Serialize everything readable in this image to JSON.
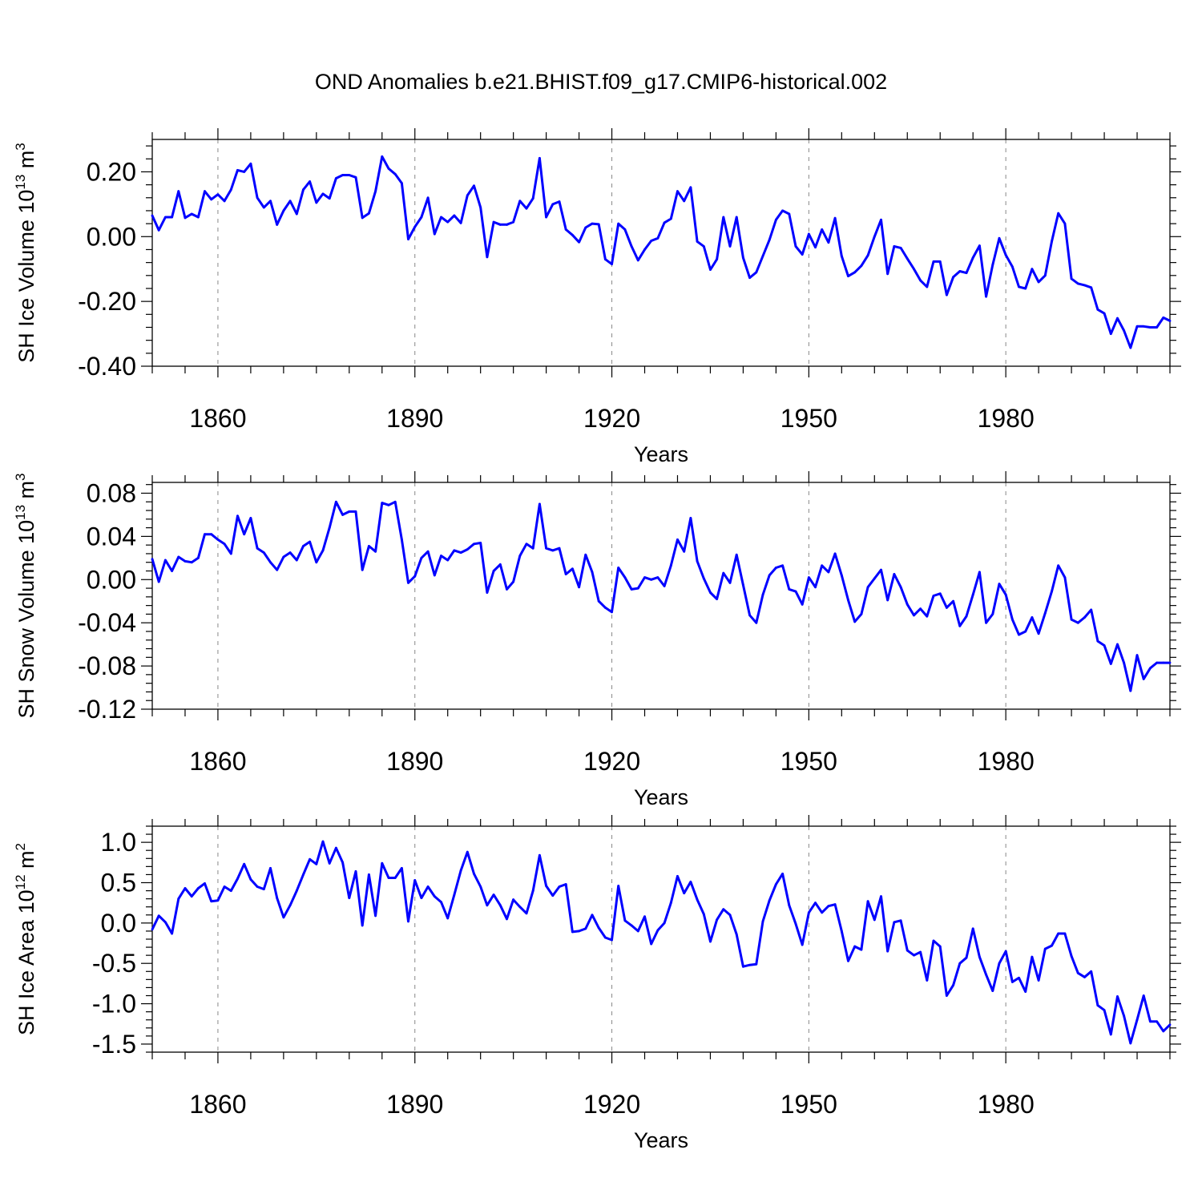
{
  "title": "OND Anomalies b.e21.BHIST.f09_g17.CMIP6-historical.002",
  "colors": {
    "line": "#0000ff",
    "axis": "#000000",
    "grid": "#888888"
  },
  "chart_data": [
    {
      "type": "line",
      "ylabel": {
        "text": "SH Ice Volume 10",
        "exp": "13",
        "unit": " m",
        "unit_exp": "3"
      },
      "xlabel": "Years",
      "xlim": [
        1850,
        2005
      ],
      "ylim": [
        -0.4,
        0.3
      ],
      "yticks": [
        -0.4,
        -0.2,
        0.0,
        0.2
      ],
      "ytick_labels": [
        "-0.40",
        "-0.20",
        "0.00",
        "0.20"
      ],
      "xticks": [
        1860,
        1890,
        1920,
        1950,
        1980
      ],
      "xtick_labels": [
        "1860",
        "1890",
        "1920",
        "1950",
        "1980"
      ],
      "grid": "vertical dashed at major x ticks",
      "x_start": 1850,
      "values": [
        0.065,
        0.02,
        0.06,
        0.06,
        0.14,
        0.058,
        0.07,
        0.06,
        0.14,
        0.115,
        0.13,
        0.11,
        0.145,
        0.205,
        0.2,
        0.225,
        0.12,
        0.09,
        0.11,
        0.037,
        0.08,
        0.11,
        0.07,
        0.145,
        0.17,
        0.105,
        0.132,
        0.118,
        0.18,
        0.19,
        0.19,
        0.183,
        0.058,
        0.072,
        0.14,
        0.247,
        0.21,
        0.193,
        0.165,
        -0.008,
        0.03,
        0.06,
        0.12,
        0.008,
        0.06,
        0.045,
        0.065,
        0.042,
        0.127,
        0.157,
        0.09,
        -0.063,
        0.045,
        0.037,
        0.037,
        0.045,
        0.11,
        0.087,
        0.118,
        0.242,
        0.06,
        0.1,
        0.108,
        0.022,
        0.005,
        -0.017,
        0.028,
        0.04,
        0.038,
        -0.07,
        -0.085,
        0.04,
        0.022,
        -0.03,
        -0.073,
        -0.04,
        -0.013,
        -0.005,
        0.043,
        0.055,
        0.14,
        0.11,
        0.152,
        -0.015,
        -0.03,
        -0.102,
        -0.07,
        0.06,
        -0.03,
        0.06,
        -0.065,
        -0.127,
        -0.11,
        -0.06,
        -0.01,
        0.052,
        0.08,
        0.07,
        -0.03,
        -0.055,
        0.008,
        -0.033,
        0.022,
        -0.018,
        0.057,
        -0.06,
        -0.122,
        -0.11,
        -0.09,
        -0.058,
        0.0,
        0.052,
        -0.115,
        -0.03,
        -0.035,
        -0.068,
        -0.1,
        -0.135,
        -0.155,
        -0.077,
        -0.077,
        -0.18,
        -0.125,
        -0.107,
        -0.112,
        -0.065,
        -0.028,
        -0.185,
        -0.087,
        -0.005,
        -0.057,
        -0.093,
        -0.155,
        -0.16,
        -0.1,
        -0.14,
        -0.12,
        -0.015,
        0.072,
        0.04,
        -0.13,
        -0.145,
        -0.15,
        -0.157,
        -0.225,
        -0.237,
        -0.3,
        -0.252,
        -0.29,
        -0.343,
        -0.277,
        -0.277,
        -0.28,
        -0.28,
        -0.25,
        -0.26
      ]
    },
    {
      "type": "line",
      "ylabel": {
        "text": "SH Snow Volume 10",
        "exp": "13",
        "unit": " m",
        "unit_exp": "3"
      },
      "xlabel": "Years",
      "xlim": [
        1850,
        2005
      ],
      "ylim": [
        -0.12,
        0.09
      ],
      "yticks": [
        -0.12,
        -0.08,
        -0.04,
        0.0,
        0.04,
        0.08
      ],
      "ytick_labels": [
        "-0.12",
        "-0.08",
        "-0.04",
        "0.00",
        "0.04",
        "0.08"
      ],
      "xticks": [
        1860,
        1890,
        1920,
        1950,
        1980
      ],
      "xtick_labels": [
        "1860",
        "1890",
        "1920",
        "1950",
        "1980"
      ],
      "grid": "vertical dashed at major x ticks",
      "x_start": 1850,
      "values": [
        0.019,
        -0.002,
        0.018,
        0.008,
        0.021,
        0.017,
        0.016,
        0.02,
        0.042,
        0.042,
        0.037,
        0.033,
        0.024,
        0.059,
        0.042,
        0.057,
        0.029,
        0.025,
        0.016,
        0.009,
        0.021,
        0.025,
        0.018,
        0.031,
        0.035,
        0.016,
        0.027,
        0.048,
        0.072,
        0.06,
        0.063,
        0.063,
        0.009,
        0.031,
        0.026,
        0.071,
        0.069,
        0.072,
        0.037,
        -0.003,
        0.003,
        0.02,
        0.026,
        0.004,
        0.022,
        0.018,
        0.027,
        0.025,
        0.028,
        0.033,
        0.034,
        -0.012,
        0.008,
        0.014,
        -0.009,
        -0.002,
        0.022,
        0.033,
        0.029,
        0.07,
        0.029,
        0.027,
        0.029,
        0.005,
        0.01,
        -0.007,
        0.023,
        0.007,
        -0.02,
        -0.026,
        -0.03,
        0.011,
        0.002,
        -0.009,
        -0.008,
        0.002,
        -0.0,
        0.002,
        -0.006,
        0.013,
        0.037,
        0.026,
        0.057,
        0.017,
        0.001,
        -0.012,
        -0.018,
        0.006,
        -0.003,
        0.023,
        -0.005,
        -0.033,
        -0.04,
        -0.014,
        0.004,
        0.011,
        0.013,
        -0.009,
        -0.011,
        -0.023,
        0.002,
        -0.007,
        0.013,
        0.007,
        0.024,
        0.004,
        -0.019,
        -0.039,
        -0.032,
        -0.007,
        0.001,
        0.009,
        -0.019,
        0.005,
        -0.007,
        -0.023,
        -0.033,
        -0.027,
        -0.034,
        -0.015,
        -0.013,
        -0.026,
        -0.02,
        -0.043,
        -0.034,
        -0.014,
        0.007,
        -0.04,
        -0.032,
        -0.004,
        -0.014,
        -0.037,
        -0.051,
        -0.048,
        -0.035,
        -0.05,
        -0.031,
        -0.011,
        0.013,
        0.002,
        -0.037,
        -0.04,
        -0.035,
        -0.028,
        -0.057,
        -0.061,
        -0.078,
        -0.06,
        -0.077,
        -0.103,
        -0.07,
        -0.092,
        -0.082,
        -0.077,
        -0.077,
        -0.077
      ]
    },
    {
      "type": "line",
      "ylabel": {
        "text": "SH Ice Area 10",
        "exp": "12",
        "unit": " m",
        "unit_exp": "2"
      },
      "xlabel": "Years",
      "xlim": [
        1850,
        2005
      ],
      "ylim": [
        -1.6,
        1.2
      ],
      "yticks": [
        -1.5,
        -1.0,
        -0.5,
        0.0,
        0.5,
        1.0
      ],
      "ytick_labels": [
        "-1.5",
        "-1.0",
        "-0.5",
        "0.0",
        "0.5",
        "1.0"
      ],
      "xticks": [
        1860,
        1890,
        1920,
        1950,
        1980
      ],
      "xtick_labels": [
        "1860",
        "1890",
        "1920",
        "1950",
        "1980"
      ],
      "grid": "vertical dashed at major x ticks",
      "x_start": 1850,
      "values": [
        -0.08,
        0.09,
        0.01,
        -0.13,
        0.3,
        0.43,
        0.33,
        0.43,
        0.49,
        0.27,
        0.28,
        0.45,
        0.4,
        0.55,
        0.73,
        0.54,
        0.45,
        0.42,
        0.68,
        0.31,
        0.07,
        0.22,
        0.4,
        0.6,
        0.79,
        0.73,
        1.01,
        0.74,
        0.93,
        0.75,
        0.31,
        0.64,
        -0.03,
        0.6,
        0.09,
        0.74,
        0.56,
        0.56,
        0.68,
        0.02,
        0.53,
        0.31,
        0.45,
        0.33,
        0.26,
        0.06,
        0.35,
        0.65,
        0.88,
        0.61,
        0.45,
        0.22,
        0.35,
        0.22,
        0.05,
        0.29,
        0.2,
        0.12,
        0.4,
        0.84,
        0.46,
        0.34,
        0.45,
        0.48,
        -0.11,
        -0.1,
        -0.07,
        0.1,
        -0.06,
        -0.18,
        -0.21,
        0.46,
        0.03,
        -0.03,
        -0.1,
        0.08,
        -0.26,
        -0.09,
        0.0,
        0.25,
        0.58,
        0.37,
        0.51,
        0.29,
        0.11,
        -0.23,
        0.04,
        0.17,
        0.1,
        -0.14,
        -0.54,
        -0.52,
        -0.51,
        0.02,
        0.28,
        0.48,
        0.61,
        0.22,
        -0.01,
        -0.27,
        0.13,
        0.25,
        0.13,
        0.21,
        0.23,
        -0.1,
        -0.47,
        -0.29,
        -0.33,
        0.27,
        0.04,
        0.33,
        -0.35,
        0.01,
        0.03,
        -0.34,
        -0.4,
        -0.36,
        -0.71,
        -0.22,
        -0.29,
        -0.9,
        -0.77,
        -0.5,
        -0.43,
        -0.07,
        -0.42,
        -0.64,
        -0.84,
        -0.5,
        -0.35,
        -0.73,
        -0.68,
        -0.85,
        -0.42,
        -0.71,
        -0.32,
        -0.28,
        -0.13,
        -0.13,
        -0.41,
        -0.62,
        -0.67,
        -0.6,
        -1.02,
        -1.08,
        -1.38,
        -0.91,
        -1.15,
        -1.49,
        -1.2,
        -0.9,
        -1.22,
        -1.22,
        -1.34,
        -1.26
      ]
    }
  ]
}
